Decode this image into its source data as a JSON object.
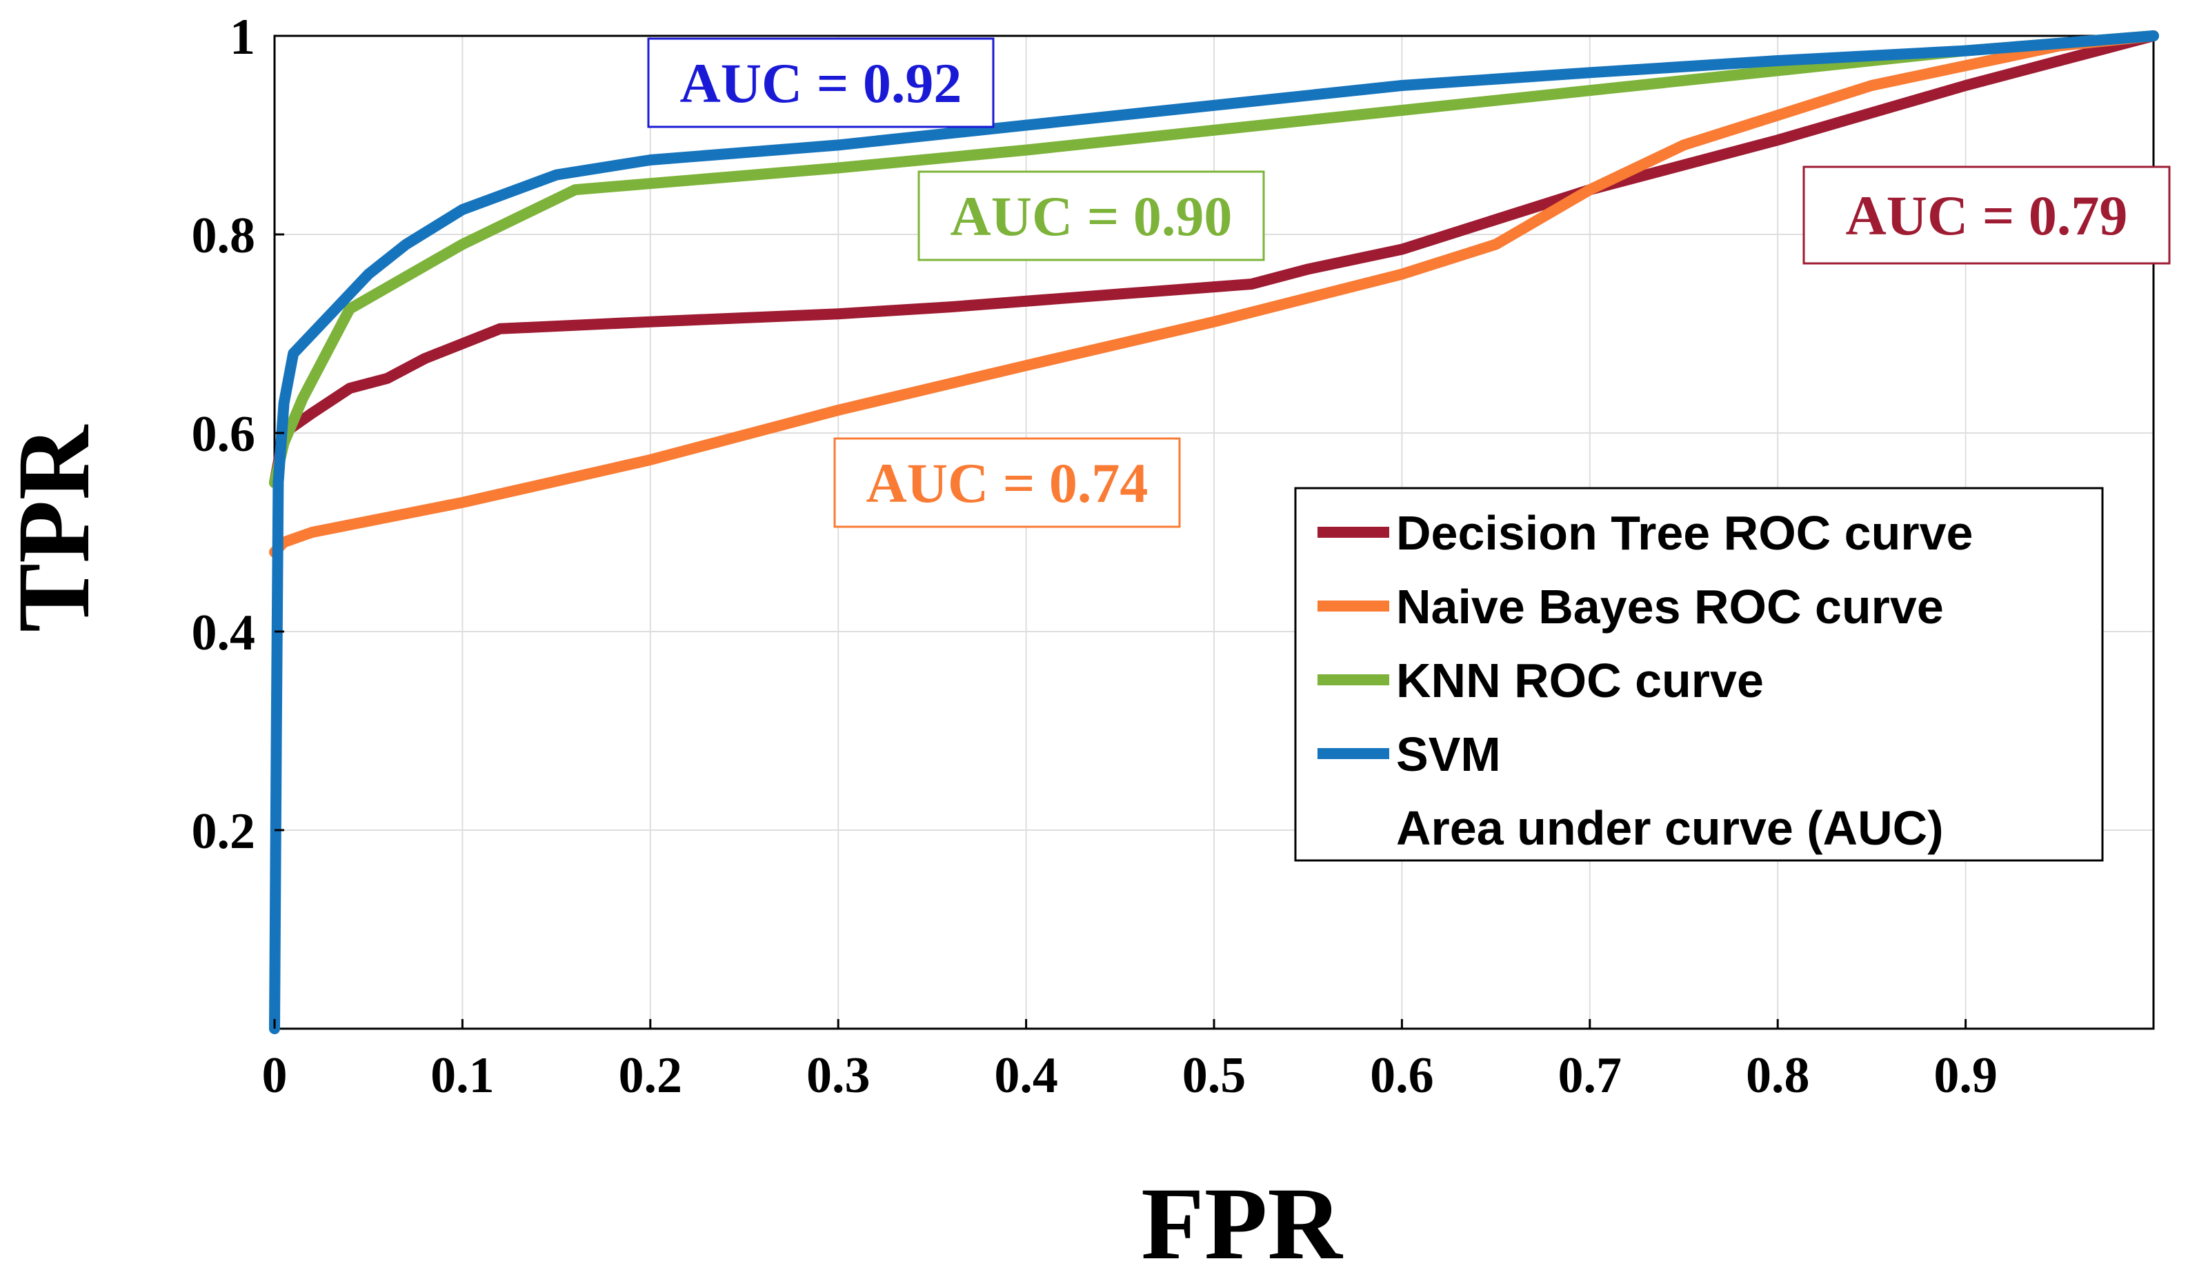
{
  "chart_data": {
    "type": "line",
    "title": "",
    "xlabel": "FPR",
    "ylabel": "TPR",
    "xlim": [
      0,
      1
    ],
    "ylim": [
      0,
      1
    ],
    "grid": true,
    "x_ticks": [
      0,
      0.1,
      0.2,
      0.3,
      0.4,
      0.5,
      0.6,
      0.7,
      0.8,
      0.9
    ],
    "x_tick_labels": [
      "0",
      "0.1",
      "0.2",
      "0.3",
      "0.4",
      "0.5",
      "0.6",
      "0.7",
      "0.8",
      "0.9"
    ],
    "y_ticks": [
      0.2,
      0.4,
      0.6,
      0.8,
      1.0
    ],
    "y_tick_labels": [
      "0.2",
      "0.4",
      "0.6",
      "0.8",
      "1"
    ],
    "legend_position": "right",
    "legend_note": "Area under curve (AUC)",
    "series": [
      {
        "name": "Decision Tree ROC curve",
        "color": "#9e1b32",
        "auc_label": "AUC = 0.79",
        "points": [
          [
            0,
            0.55
          ],
          [
            0.005,
            0.6
          ],
          [
            0.02,
            0.62
          ],
          [
            0.04,
            0.645
          ],
          [
            0.06,
            0.655
          ],
          [
            0.08,
            0.675
          ],
          [
            0.12,
            0.705
          ],
          [
            0.2,
            0.712
          ],
          [
            0.3,
            0.72
          ],
          [
            0.36,
            0.727
          ],
          [
            0.45,
            0.74
          ],
          [
            0.52,
            0.75
          ],
          [
            0.55,
            0.765
          ],
          [
            0.6,
            0.785
          ],
          [
            0.7,
            0.845
          ],
          [
            0.8,
            0.895
          ],
          [
            0.9,
            0.95
          ],
          [
            1.0,
            1.0
          ]
        ]
      },
      {
        "name": "Naive Bayes ROC curve",
        "color": "#f97b34",
        "auc_label": "AUC = 0.74",
        "points": [
          [
            0,
            0.48
          ],
          [
            0.005,
            0.49
          ],
          [
            0.02,
            0.5
          ],
          [
            0.1,
            0.53
          ],
          [
            0.2,
            0.573
          ],
          [
            0.3,
            0.623
          ],
          [
            0.4,
            0.668
          ],
          [
            0.5,
            0.712
          ],
          [
            0.6,
            0.76
          ],
          [
            0.65,
            0.79
          ],
          [
            0.7,
            0.845
          ],
          [
            0.75,
            0.89
          ],
          [
            0.8,
            0.92
          ],
          [
            0.85,
            0.95
          ],
          [
            0.9,
            0.97
          ],
          [
            0.95,
            0.99
          ],
          [
            1.0,
            1.0
          ]
        ]
      },
      {
        "name": "KNN ROC curve",
        "color": "#7db33a",
        "auc_label": "AUC = 0.90",
        "points": [
          [
            0,
            0.55
          ],
          [
            0.005,
            0.59
          ],
          [
            0.015,
            0.635
          ],
          [
            0.04,
            0.725
          ],
          [
            0.1,
            0.79
          ],
          [
            0.16,
            0.845
          ],
          [
            0.3,
            0.867
          ],
          [
            0.4,
            0.885
          ],
          [
            0.5,
            0.905
          ],
          [
            0.6,
            0.925
          ],
          [
            0.7,
            0.945
          ],
          [
            0.8,
            0.965
          ],
          [
            0.9,
            0.985
          ],
          [
            1.0,
            1.0
          ]
        ]
      },
      {
        "name": "SVM",
        "color": "#1674bd",
        "auc_label": "AUC = 0.92",
        "points": [
          [
            0,
            0.0
          ],
          [
            0.001,
            0.3
          ],
          [
            0.002,
            0.55
          ],
          [
            0.005,
            0.63
          ],
          [
            0.01,
            0.68
          ],
          [
            0.03,
            0.72
          ],
          [
            0.05,
            0.76
          ],
          [
            0.07,
            0.79
          ],
          [
            0.1,
            0.825
          ],
          [
            0.15,
            0.86
          ],
          [
            0.2,
            0.875
          ],
          [
            0.3,
            0.89
          ],
          [
            0.4,
            0.91
          ],
          [
            0.5,
            0.93
          ],
          [
            0.6,
            0.95
          ],
          [
            0.7,
            0.963
          ],
          [
            0.8,
            0.975
          ],
          [
            0.9,
            0.985
          ],
          [
            1.0,
            1.0
          ]
        ]
      }
    ]
  }
}
